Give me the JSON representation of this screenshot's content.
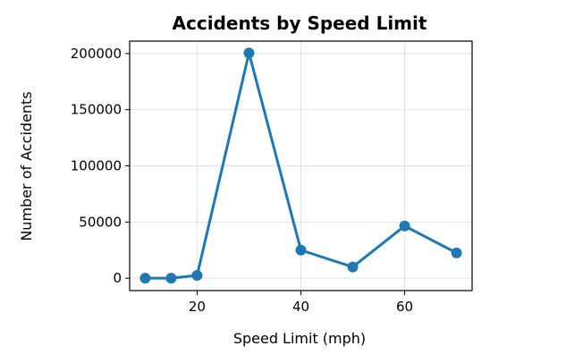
{
  "chart_data": {
    "type": "line",
    "title": "Accidents by Speed Limit",
    "xlabel": "Speed Limit (mph)",
    "ylabel": "Number of Accidents",
    "x": [
      10,
      15,
      20,
      30,
      40,
      50,
      60,
      70
    ],
    "series": [
      {
        "values": [
          0,
          0,
          2500,
          200500,
          25000,
          10000,
          46500,
          22500
        ],
        "color": "#1f77b4",
        "marker": "circle"
      }
    ],
    "xlim": [
      7,
      73
    ],
    "ylim": [
      -11000,
      211000
    ],
    "xticks": [
      20,
      40,
      60
    ],
    "yticks": [
      0,
      50000,
      100000,
      150000,
      200000
    ],
    "xtick_labels": [
      "20",
      "40",
      "60"
    ],
    "ytick_labels": [
      "0",
      "50000",
      "100000",
      "150000",
      "200000"
    ],
    "grid": true,
    "legend": "none"
  }
}
